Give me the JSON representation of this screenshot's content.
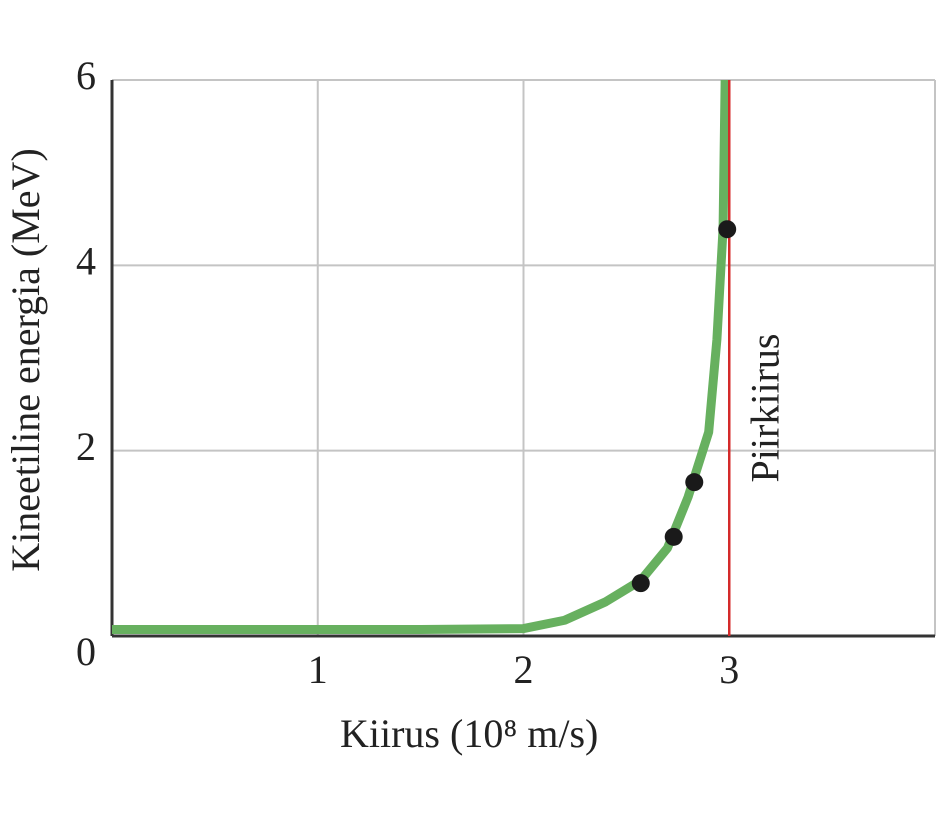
{
  "chart_data": {
    "type": "line",
    "xlabel": "Kiirus (10⁸ m/s)",
    "ylabel": "Kineetiline energia (MeV)",
    "xlim": [
      0,
      4
    ],
    "ylim": [
      0,
      6
    ],
    "xticks": [
      1,
      2,
      3
    ],
    "yticks": [
      0,
      2,
      4,
      6
    ],
    "grid": true,
    "curve": {
      "color": "#67b05f",
      "x": [
        0,
        0.5,
        1,
        1.5,
        2,
        2.2,
        2.4,
        2.57,
        2.7,
        2.8,
        2.9,
        2.94,
        2.97,
        2.98
      ],
      "y": [
        0.07,
        0.07,
        0.07,
        0.07,
        0.08,
        0.17,
        0.37,
        0.6,
        0.95,
        1.5,
        2.2,
        3.2,
        4.4,
        6
      ]
    },
    "points": {
      "color": "#1a1a1a",
      "x": [
        2.57,
        2.73,
        2.83,
        2.99
      ],
      "y": [
        0.57,
        1.07,
        1.66,
        4.39
      ]
    },
    "limit": {
      "x": 3,
      "label": "Piirkiirus",
      "color": "#d42a2a"
    }
  }
}
